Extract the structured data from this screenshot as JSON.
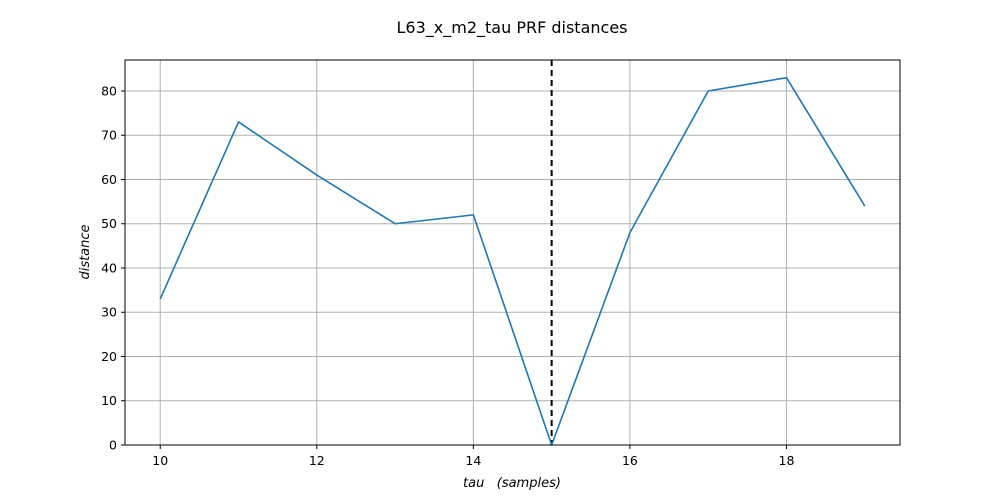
{
  "chart_data": {
    "type": "line",
    "title": "L63_x_m2_tau PRF distances",
    "xlabel": "tau   (samples)",
    "ylabel": "distance",
    "x": [
      10,
      11,
      12,
      13,
      14,
      15,
      16,
      17,
      18,
      19
    ],
    "values": [
      33,
      73,
      61,
      50,
      52,
      0,
      48,
      80,
      83,
      54
    ],
    "xlim": [
      9.55,
      19.45
    ],
    "ylim": [
      0,
      87
    ],
    "xticks": [
      10,
      12,
      14,
      16,
      18
    ],
    "yticks": [
      0,
      10,
      20,
      30,
      40,
      50,
      60,
      70,
      80
    ],
    "vline_x": 15,
    "grid": true,
    "line_color": "#1f77b4",
    "vline_color": "#000000"
  }
}
